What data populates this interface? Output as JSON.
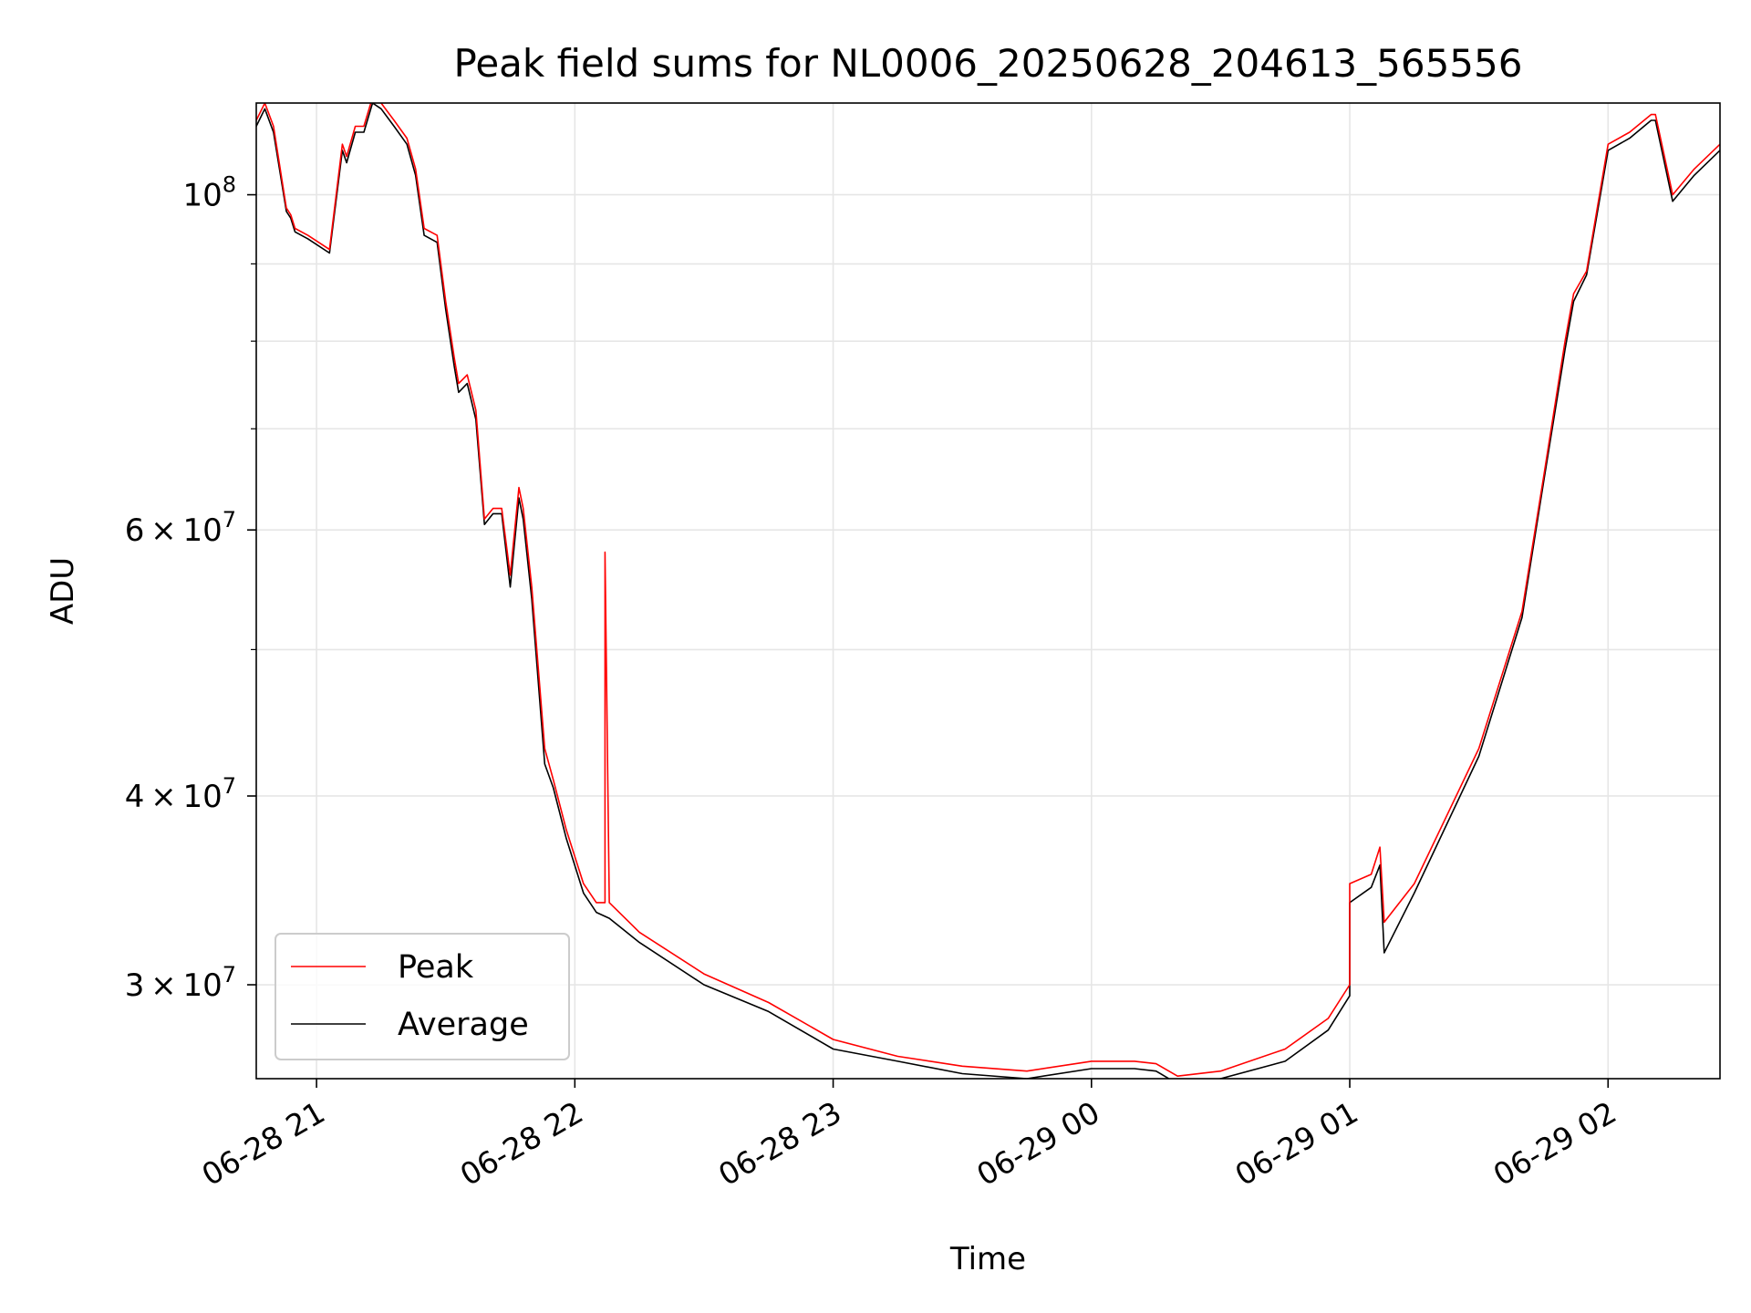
{
  "chart_data": {
    "type": "line",
    "title": "Peak field sums for NL0006_20250628_204613_565556",
    "xlabel": "Time",
    "ylabel": "ADU",
    "y_scale": "log",
    "ylim": [
      26000000,
      115000000
    ],
    "xlim": [
      "2025-06-28 20:46",
      "2025-06-29 02:26"
    ],
    "x_ticks": [
      {
        "value": "2025-06-28 21:00",
        "label": "06-28 21"
      },
      {
        "value": "2025-06-28 22:00",
        "label": "06-28 22"
      },
      {
        "value": "2025-06-28 23:00",
        "label": "06-28 23"
      },
      {
        "value": "2025-06-29 00:00",
        "label": "06-29 00"
      },
      {
        "value": "2025-06-29 01:00",
        "label": "06-29 01"
      },
      {
        "value": "2025-06-29 02:00",
        "label": "06-29 02"
      }
    ],
    "y_major_ticks": [
      {
        "value": 30000000,
        "mantissa": "3",
        "base": "10",
        "exp": "7"
      },
      {
        "value": 40000000,
        "mantissa": "4",
        "base": "10",
        "exp": "7"
      },
      {
        "value": 60000000,
        "mantissa": "6",
        "base": "10",
        "exp": "7"
      },
      {
        "value": 100000000,
        "mantissa": "",
        "base": "10",
        "exp": "8"
      }
    ],
    "y_minor_ticks": [
      50000000,
      70000000,
      80000000,
      90000000
    ],
    "grid": true,
    "legend_position": "lower left",
    "series": [
      {
        "name": "Peak",
        "color": "#ff0000",
        "x": [
          "2025-06-28 20:46",
          "2025-06-28 20:48",
          "2025-06-28 20:50",
          "2025-06-28 20:53",
          "2025-06-28 20:54",
          "2025-06-28 20:55",
          "2025-06-28 20:58",
          "2025-06-28 21:03",
          "2025-06-28 21:06",
          "2025-06-28 21:07",
          "2025-06-28 21:09",
          "2025-06-28 21:11",
          "2025-06-28 21:13",
          "2025-06-28 21:15",
          "2025-06-28 21:18",
          "2025-06-28 21:21",
          "2025-06-28 21:23",
          "2025-06-28 21:25",
          "2025-06-28 21:28",
          "2025-06-28 21:30",
          "2025-06-28 21:32",
          "2025-06-28 21:33",
          "2025-06-28 21:35",
          "2025-06-28 21:37",
          "2025-06-28 21:39",
          "2025-06-28 21:41",
          "2025-06-28 21:43",
          "2025-06-28 21:45",
          "2025-06-28 21:47",
          "2025-06-28 21:48",
          "2025-06-28 21:50",
          "2025-06-28 21:53",
          "2025-06-28 21:55",
          "2025-06-28 21:58",
          "2025-06-28 22:02",
          "2025-06-28 22:05",
          "2025-06-28 22:07",
          "2025-06-28 22:07",
          "2025-06-28 22:08",
          "2025-06-28 22:15",
          "2025-06-28 22:30",
          "2025-06-28 22:45",
          "2025-06-28 23:00",
          "2025-06-28 23:15",
          "2025-06-28 23:30",
          "2025-06-28 23:45",
          "2025-06-29 00:00",
          "2025-06-29 00:10",
          "2025-06-29 00:15",
          "2025-06-29 00:20",
          "2025-06-29 00:30",
          "2025-06-29 00:45",
          "2025-06-29 00:55",
          "2025-06-29 01:00",
          "2025-06-29 01:00",
          "2025-06-29 01:05",
          "2025-06-29 01:07",
          "2025-06-29 01:08",
          "2025-06-29 01:15",
          "2025-06-29 01:30",
          "2025-06-29 01:40",
          "2025-06-29 01:45",
          "2025-06-29 01:50",
          "2025-06-29 01:52",
          "2025-06-29 01:55",
          "2025-06-29 02:00",
          "2025-06-29 02:05",
          "2025-06-29 02:10",
          "2025-06-29 02:11",
          "2025-06-29 02:15",
          "2025-06-29 02:20",
          "2025-06-29 02:26"
        ],
        "y": [
          112000000,
          115000000,
          111000000,
          98000000,
          97000000,
          95000000,
          94000000,
          92000000,
          108000000,
          106000000,
          111000000,
          111000000,
          116000000,
          115000000,
          112000000,
          109000000,
          104000000,
          95000000,
          94000000,
          85000000,
          78000000,
          75000000,
          76000000,
          72000000,
          61000000,
          62000000,
          62000000,
          56000000,
          64000000,
          62000000,
          55000000,
          43000000,
          41000000,
          38000000,
          35000000,
          34000000,
          34000000,
          58000000,
          34000000,
          32500000,
          30500000,
          29200000,
          27600000,
          26900000,
          26500000,
          26300000,
          26700000,
          26700000,
          26600000,
          26100000,
          26300000,
          27200000,
          28500000,
          30000000,
          35000000,
          35500000,
          37000000,
          33000000,
          35000000,
          43000000,
          53000000,
          65000000,
          80000000,
          86000000,
          89000000,
          108000000,
          110000000,
          113000000,
          113000000,
          100000000,
          104000000,
          108000000
        ]
      },
      {
        "name": "Average",
        "color": "#000000",
        "x": [
          "2025-06-28 20:46",
          "2025-06-28 20:48",
          "2025-06-28 20:50",
          "2025-06-28 20:53",
          "2025-06-28 20:54",
          "2025-06-28 20:55",
          "2025-06-28 20:58",
          "2025-06-28 21:03",
          "2025-06-28 21:06",
          "2025-06-28 21:07",
          "2025-06-28 21:09",
          "2025-06-28 21:11",
          "2025-06-28 21:13",
          "2025-06-28 21:15",
          "2025-06-28 21:18",
          "2025-06-28 21:21",
          "2025-06-28 21:23",
          "2025-06-28 21:25",
          "2025-06-28 21:28",
          "2025-06-28 21:30",
          "2025-06-28 21:32",
          "2025-06-28 21:33",
          "2025-06-28 21:35",
          "2025-06-28 21:37",
          "2025-06-28 21:39",
          "2025-06-28 21:41",
          "2025-06-28 21:43",
          "2025-06-28 21:45",
          "2025-06-28 21:47",
          "2025-06-28 21:48",
          "2025-06-28 21:50",
          "2025-06-28 21:53",
          "2025-06-28 21:55",
          "2025-06-28 21:58",
          "2025-06-28 22:02",
          "2025-06-28 22:05",
          "2025-06-28 22:08",
          "2025-06-28 22:15",
          "2025-06-28 22:30",
          "2025-06-28 22:45",
          "2025-06-28 23:00",
          "2025-06-28 23:15",
          "2025-06-28 23:30",
          "2025-06-28 23:45",
          "2025-06-29 00:00",
          "2025-06-29 00:10",
          "2025-06-29 00:15",
          "2025-06-29 00:20",
          "2025-06-29 00:30",
          "2025-06-29 00:45",
          "2025-06-29 00:55",
          "2025-06-29 01:00",
          "2025-06-29 01:00",
          "2025-06-29 01:05",
          "2025-06-29 01:07",
          "2025-06-29 01:08",
          "2025-06-29 01:15",
          "2025-06-29 01:30",
          "2025-06-29 01:40",
          "2025-06-29 01:45",
          "2025-06-29 01:50",
          "2025-06-29 01:52",
          "2025-06-29 01:55",
          "2025-06-29 02:00",
          "2025-06-29 02:05",
          "2025-06-29 02:10",
          "2025-06-29 02:11",
          "2025-06-29 02:15",
          "2025-06-29 02:20",
          "2025-06-29 02:26"
        ],
        "y": [
          111000000,
          114000000,
          110000000,
          97500000,
          96500000,
          94500000,
          93500000,
          91500000,
          107000000,
          105000000,
          110000000,
          110000000,
          115000000,
          114000000,
          111000000,
          108000000,
          103000000,
          94000000,
          93000000,
          84000000,
          77000000,
          74000000,
          75000000,
          71000000,
          60500000,
          61500000,
          61500000,
          55000000,
          63000000,
          61000000,
          54000000,
          42000000,
          40500000,
          37500000,
          34500000,
          33500000,
          33200000,
          32000000,
          30000000,
          28800000,
          27200000,
          26700000,
          26200000,
          26000000,
          26400000,
          26400000,
          26300000,
          25800000,
          26000000,
          26700000,
          28000000,
          29500000,
          34000000,
          34800000,
          36000000,
          31500000,
          34500000,
          42500000,
          52500000,
          64500000,
          79000000,
          85000000,
          88500000,
          107000000,
          109000000,
          112000000,
          112000000,
          99000000,
          103000000,
          107000000
        ]
      }
    ]
  }
}
